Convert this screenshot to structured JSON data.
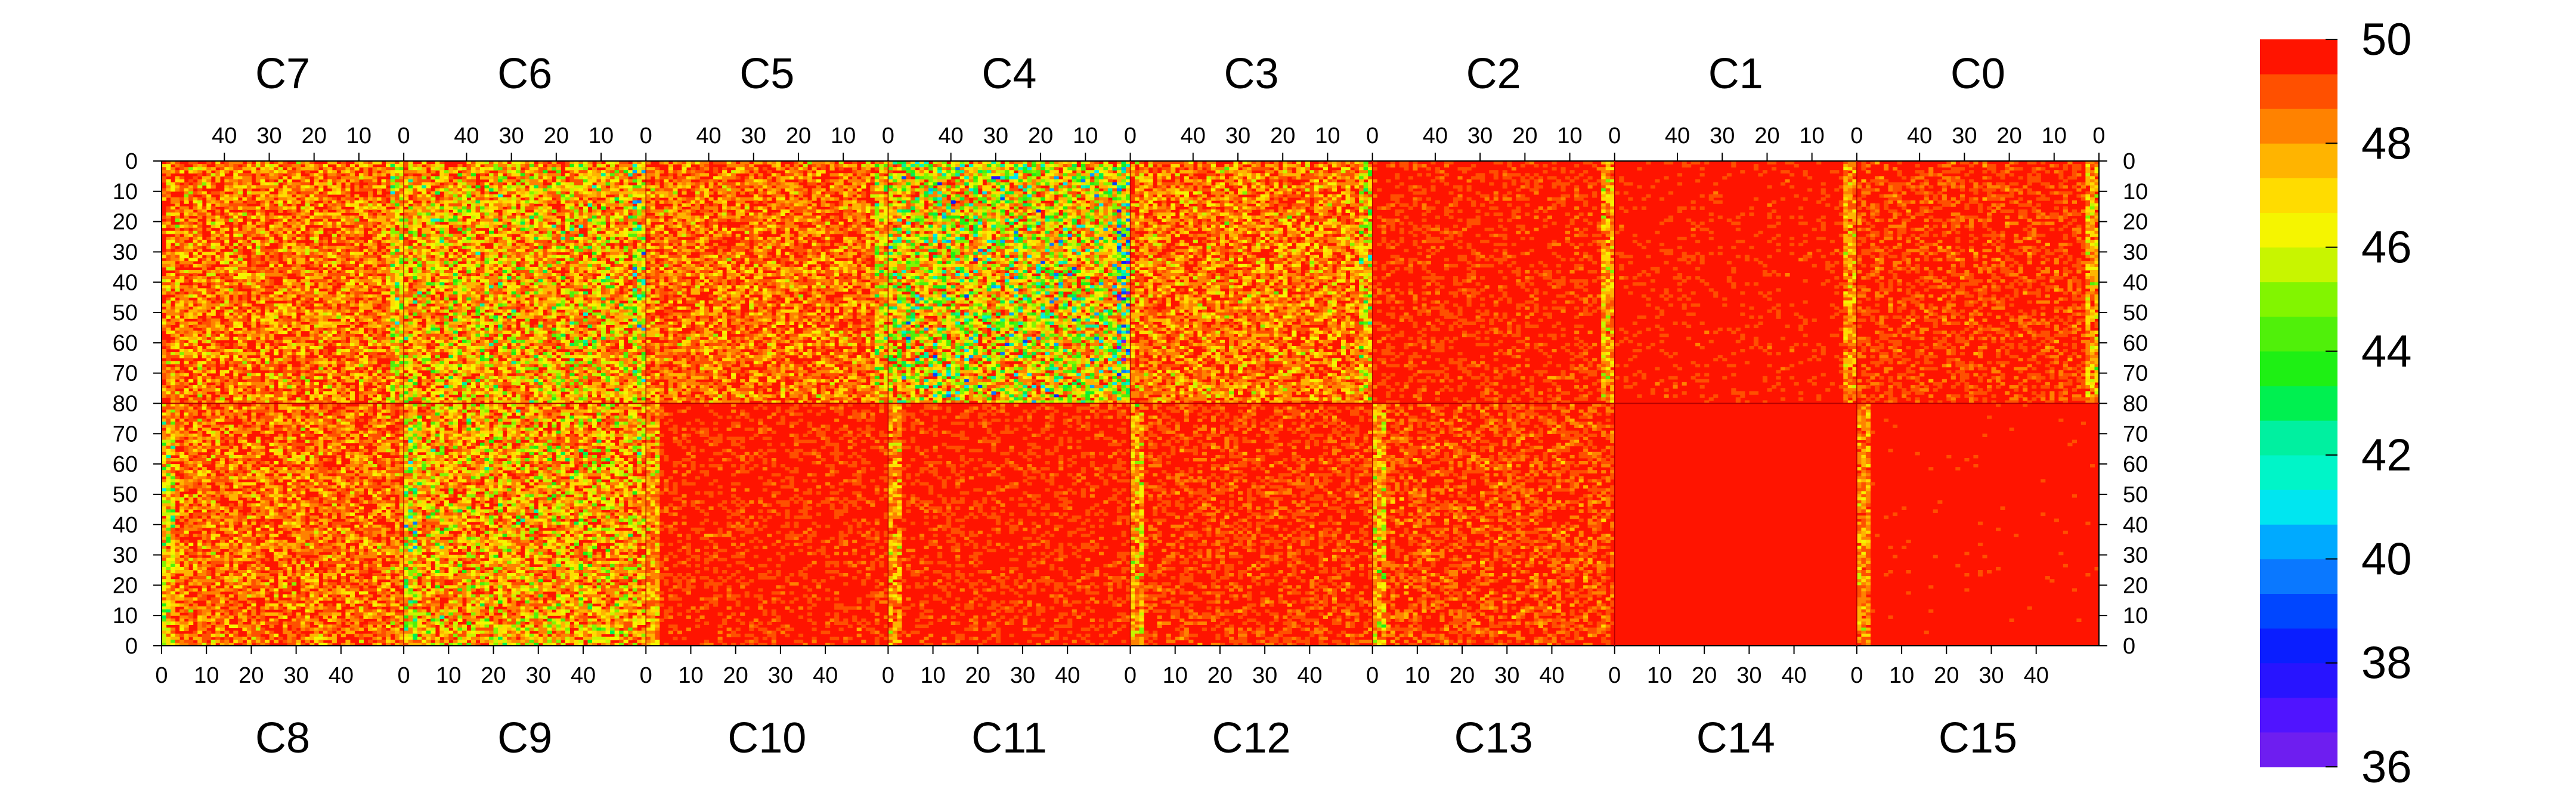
{
  "chart_data": {
    "type": "heatmap",
    "title": "",
    "xlabel": "",
    "ylabel": "",
    "grid": false,
    "top_row": {
      "labels": [
        "C7",
        "C6",
        "C5",
        "C4",
        "C3",
        "C2",
        "C1",
        "C0"
      ],
      "x_tick_labels": [
        "40",
        "30",
        "20",
        "10",
        "0"
      ],
      "x_axis_direction": "decreasing",
      "xlim": [
        54,
        0
      ]
    },
    "bottom_row": {
      "labels": [
        "C8",
        "C9",
        "C10",
        "C11",
        "C12",
        "C13",
        "C14",
        "C15"
      ],
      "x_tick_labels": [
        "0",
        "10",
        "20",
        "30",
        "40"
      ],
      "x_axis_direction": "increasing",
      "xlim": [
        0,
        54
      ]
    },
    "y_axis": {
      "top_half_ticks": [
        "0",
        "10",
        "20",
        "30",
        "40",
        "50",
        "60",
        "70",
        "80"
      ],
      "bottom_half_ticks": [
        "70",
        "60",
        "50",
        "40",
        "30",
        "20",
        "10",
        "0"
      ],
      "ylim_each_half": [
        0,
        80
      ]
    },
    "colorbar": {
      "min": 36,
      "max": 50,
      "tick_labels": [
        "50",
        "48",
        "46",
        "44",
        "42",
        "40",
        "38",
        "36"
      ],
      "colors": [
        "#6e1ef0",
        "#5014ff",
        "#2814ff",
        "#0a1eff",
        "#0046ff",
        "#0a78ff",
        "#00aaff",
        "#00e6f0",
        "#00f5c8",
        "#00f0a0",
        "#00f050",
        "#1ef014",
        "#50f00a",
        "#82f500",
        "#c8f500",
        "#f5f500",
        "#ffdc00",
        "#ffb400",
        "#ff8200",
        "#ff5000",
        "#ff1400"
      ]
    },
    "panels": [
      {
        "name": "C7",
        "mean": 48.9
      },
      {
        "name": "C6",
        "mean": 48.3
      },
      {
        "name": "C5",
        "mean": 49.0
      },
      {
        "name": "C4",
        "mean": 47.6
      },
      {
        "name": "C3",
        "mean": 48.9
      },
      {
        "name": "C2",
        "mean": 49.6
      },
      {
        "name": "C1",
        "mean": 49.7
      },
      {
        "name": "C0",
        "mean": 49.5
      },
      {
        "name": "C8",
        "mean": 49.0
      },
      {
        "name": "C9",
        "mean": 48.4
      },
      {
        "name": "C10",
        "mean": 49.6
      },
      {
        "name": "C11",
        "mean": 49.6
      },
      {
        "name": "C12",
        "mean": 49.5
      },
      {
        "name": "C13",
        "mean": 49.4
      },
      {
        "name": "C14",
        "mean": 49.9
      },
      {
        "name": "C15",
        "mean": 49.8
      }
    ]
  }
}
